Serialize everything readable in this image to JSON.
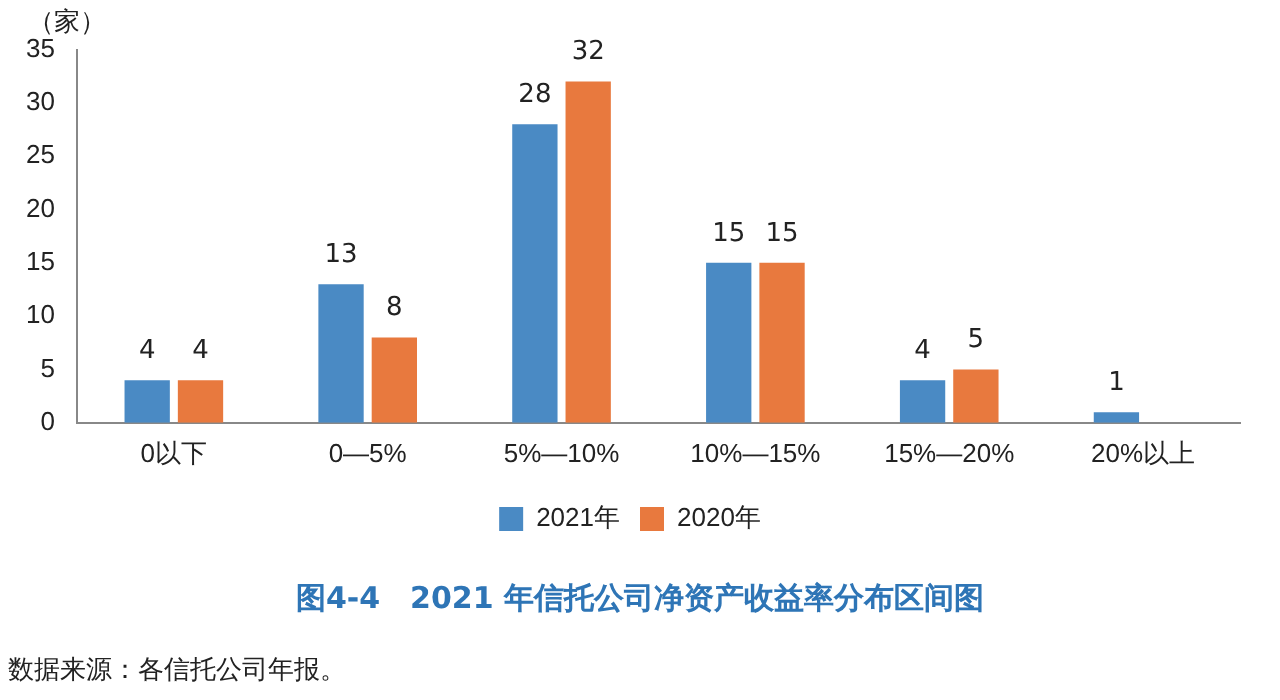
{
  "chart_data": {
    "type": "bar",
    "title": "图4-4　2021 年信托公司净资产收益率分布区间图",
    "ylabel": "（家）",
    "categories": [
      "0以下",
      "0—5%",
      "5%—10%",
      "10%—15%",
      "15%—20%",
      "20%以上"
    ],
    "series": [
      {
        "name": "2021年",
        "color": "#4a8ac4",
        "values": [
          4,
          13,
          28,
          15,
          4,
          1
        ]
      },
      {
        "name": "2020年",
        "color": "#e8793e",
        "values": [
          4,
          8,
          32,
          15,
          5,
          null
        ]
      }
    ],
    "ylim": [
      0,
      35
    ],
    "yticks": [
      0,
      5,
      10,
      15,
      20,
      25,
      30,
      35
    ],
    "grid": false,
    "legend": "bottom",
    "data_labels": true,
    "annotations": [
      "数据来源：各信托公司年报。"
    ]
  }
}
